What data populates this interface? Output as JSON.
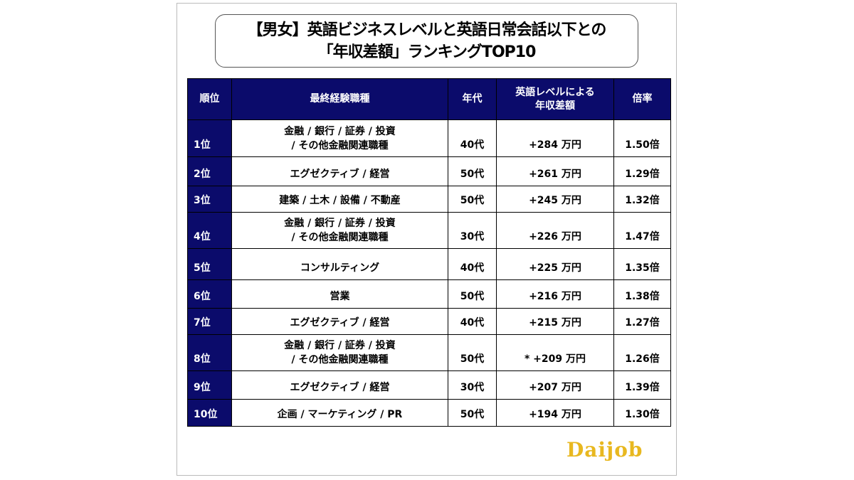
{
  "title": {
    "line1": "【男女】英語ビジネスレベルと英語日常会話以下との",
    "line2": "「年収差額」ランキングTOP10"
  },
  "headers": {
    "rank": "順位",
    "job": "最終経験職種",
    "age": "年代",
    "amount_l1": "英語レベルによる",
    "amount_l2": "年収差額",
    "ratio": "倍率"
  },
  "rows": [
    {
      "rank": "1位",
      "job1": "金融 / 銀行 / 証券 / 投資",
      "job2": "/ その他金融関連職種",
      "age": "40代",
      "amount": "+284 万円",
      "ratio": "1.50倍"
    },
    {
      "rank": "2位",
      "job1": "エグゼクティブ / 経営",
      "job2": "",
      "age": "50代",
      "amount": "+261 万円",
      "ratio": "1.29倍"
    },
    {
      "rank": "3位",
      "job1": "建築 / 土木 / 設備 / 不動産",
      "job2": "",
      "age": "50代",
      "amount": "+245 万円",
      "ratio": "1.32倍"
    },
    {
      "rank": "4位",
      "job1": "金融 / 銀行 / 証券 / 投資",
      "job2": "/ その他金融関連職種",
      "age": "30代",
      "amount": "+226 万円",
      "ratio": "1.47倍"
    },
    {
      "rank": "5位",
      "job1": "コンサルティング",
      "job2": "",
      "age": "40代",
      "amount": "+225 万円",
      "ratio": "1.35倍"
    },
    {
      "rank": "6位",
      "job1": "営業",
      "job2": "",
      "age": "50代",
      "amount": "+216 万円",
      "ratio": "1.38倍"
    },
    {
      "rank": "7位",
      "job1": "エグゼクティブ / 経営",
      "job2": "",
      "age": "40代",
      "amount": "+215 万円",
      "ratio": "1.27倍"
    },
    {
      "rank": "8位",
      "job1": "金融 / 銀行 / 証券 / 投資",
      "job2": "/ その他金融関連職種",
      "age": "50代",
      "amount": "* +209 万円",
      "ratio": "1.26倍"
    },
    {
      "rank": "9位",
      "job1": "エグゼクティブ / 経営",
      "job2": "",
      "age": "30代",
      "amount": "+207 万円",
      "ratio": "1.39倍"
    },
    {
      "rank": "10位",
      "job1": "企画 / マーケティング / PR",
      "job2": "",
      "age": "50代",
      "amount": "+194 万円",
      "ratio": "1.30倍"
    }
  ],
  "logo": "Daijob"
}
